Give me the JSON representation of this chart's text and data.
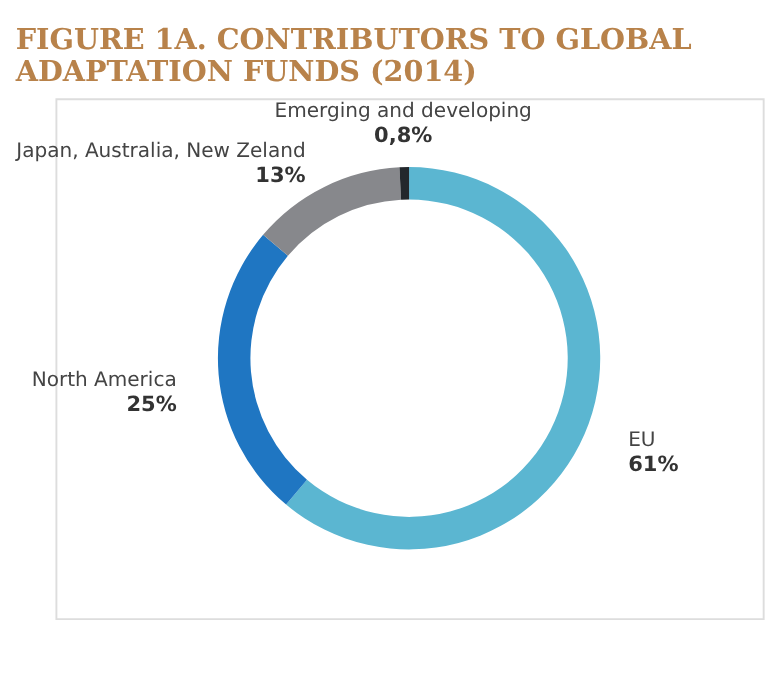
{
  "chart_data": {
    "type": "donut",
    "title": "FIGURE 1A. CONTRIBUTORS TO GLOBAL ADAPTATION FUNDS (2014)",
    "categories": [
      "EU",
      "North America",
      "Japan, Australia, New Zeland",
      "Emerging and developing"
    ],
    "values": [
      61,
      25,
      13,
      0.8
    ],
    "colors": [
      "#5bb6d1",
      "#1f76c2",
      "#87888c",
      "#23272c"
    ],
    "value_labels": [
      "61%",
      "25%",
      "13%",
      "0,8%"
    ],
    "legend": false
  }
}
